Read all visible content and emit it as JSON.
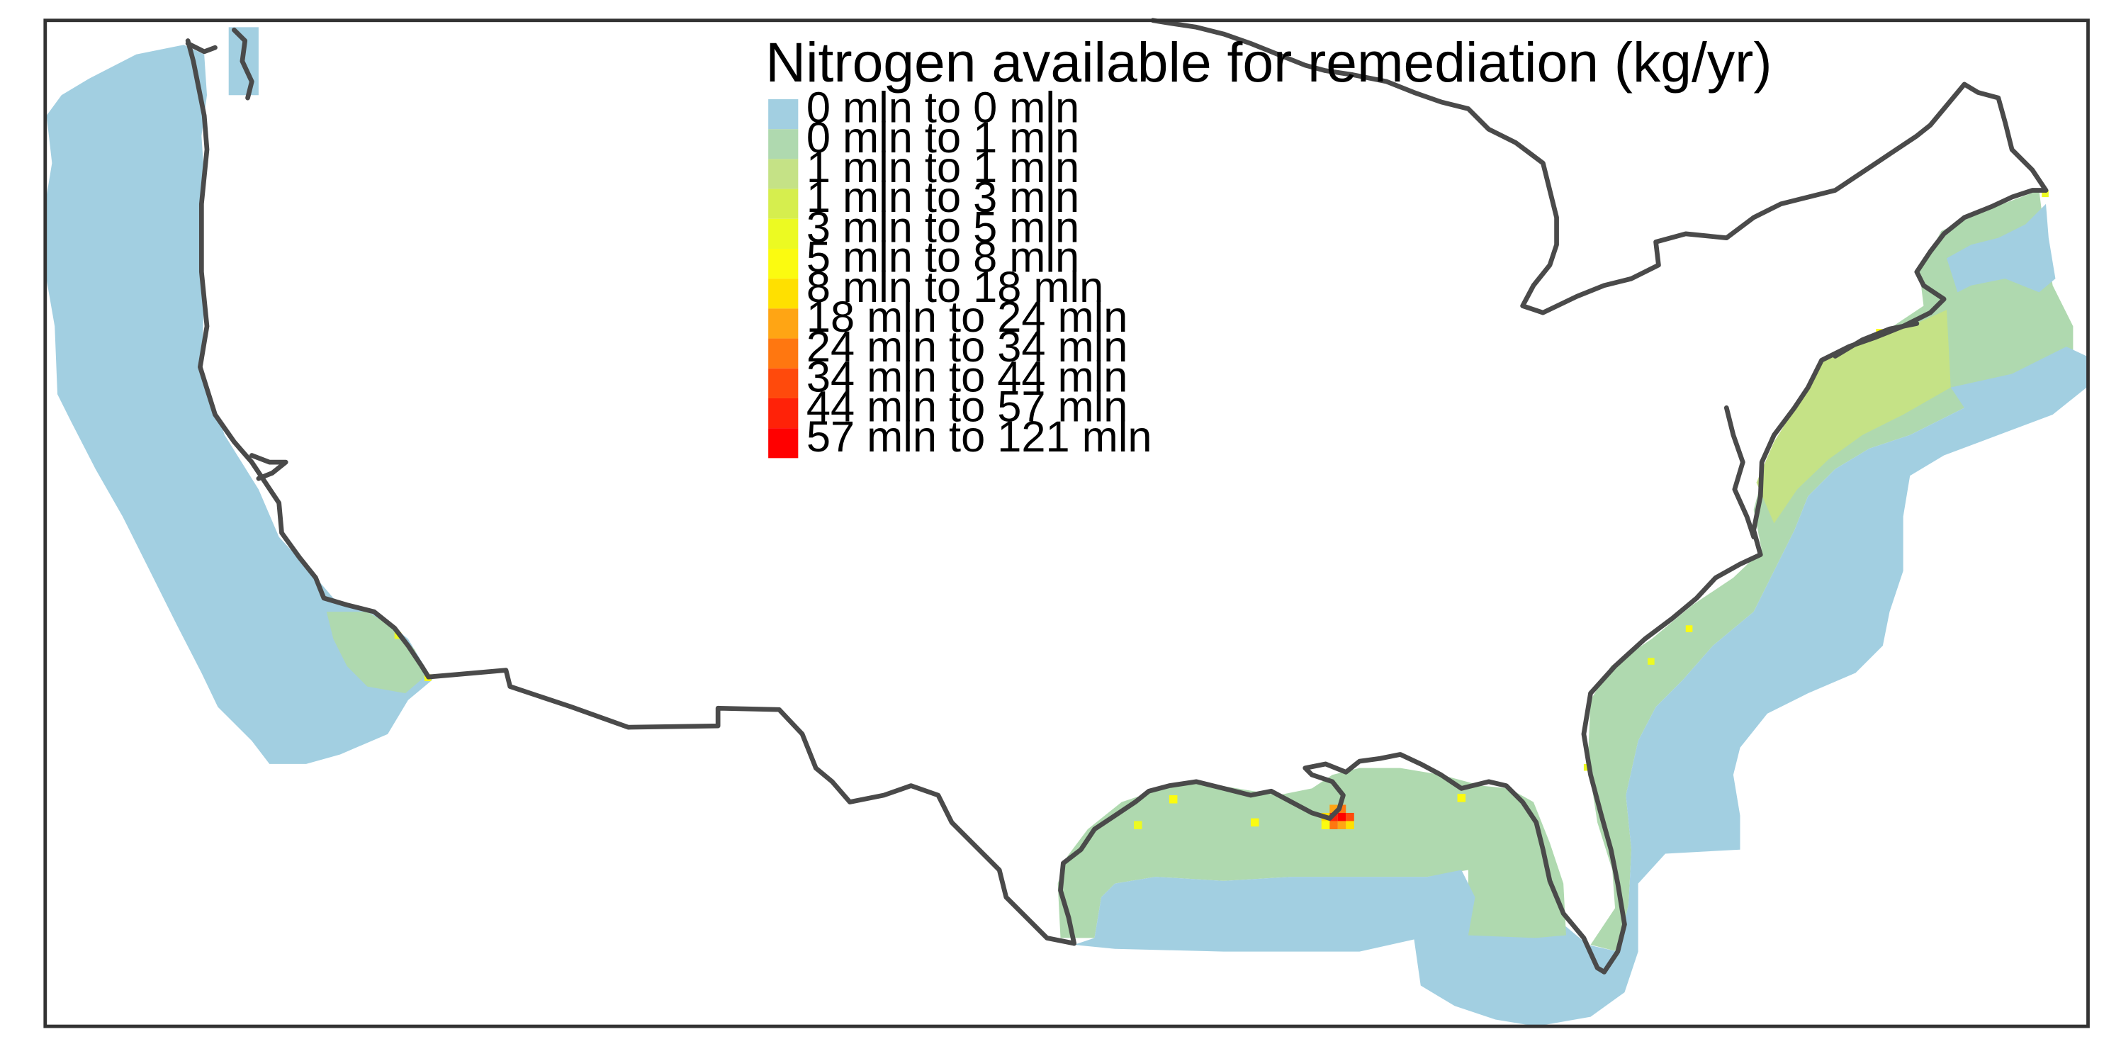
{
  "legend": {
    "title": "Nitrogen available for remediation (kg/yr)",
    "items": [
      {
        "label": "0 mln to 0 mln",
        "color": "#a2cfe1"
      },
      {
        "label": "0 mln to 1 mln",
        "color": "#afd9af"
      },
      {
        "label": "1 mln to 1 mln",
        "color": "#c5e286"
      },
      {
        "label": "1 mln to 3 mln",
        "color": "#d6ee4e"
      },
      {
        "label": "3 mln to 5 mln",
        "color": "#ecfa22"
      },
      {
        "label": "5 mln to 8 mln",
        "color": "#fbfb10"
      },
      {
        "label": "8 mln to 18 mln",
        "color": "#ffe000"
      },
      {
        "label": "18 mln to 24 mln",
        "color": "#ffa514"
      },
      {
        "label": "24 mln to 34 mln",
        "color": "#ff7710"
      },
      {
        "label": "34 mln to 44 mln",
        "color": "#ff4a0c"
      },
      {
        "label": "44 mln to 57 mln",
        "color": "#ff2208"
      },
      {
        "label": "57 mln to 121 mln",
        "color": "#ff0000"
      }
    ]
  },
  "map": {
    "ocean_base_color": "#a2cfe1",
    "outline_color": "#4a4a4a"
  }
}
